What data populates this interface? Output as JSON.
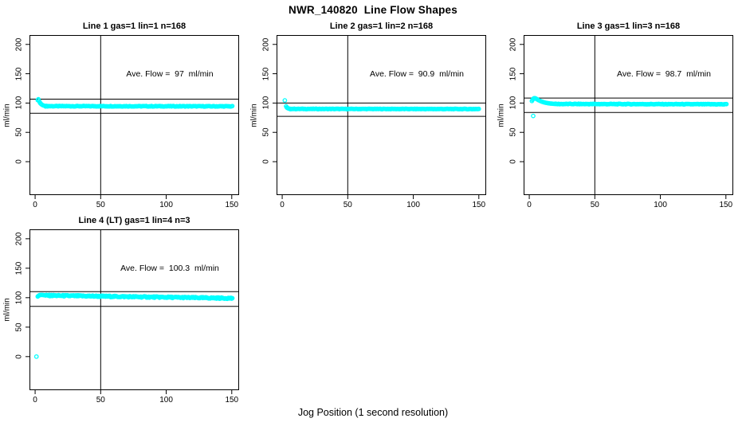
{
  "figure": {
    "title": "NWR_140820  Line Flow Shapes",
    "xlabel": "Jog Position (1 second resolution)",
    "background": "#FFFFFF",
    "point_color": "#00FFFF",
    "line_color": "#000000"
  },
  "axes": {
    "ylabel": "ml/min",
    "x_ticks": [
      0,
      50,
      100,
      150
    ],
    "y_ticks": [
      0,
      50,
      100,
      150,
      200
    ],
    "xlim": [
      -4.3,
      155.6
    ],
    "ylim": [
      -57,
      216
    ],
    "vline_x": 50
  },
  "chart_data": [
    {
      "type": "scatter",
      "title": "Line 1 gas=1 lin=1 n=168",
      "annotation": "Ave. Flow =  97  ml/min",
      "ave_flow_ml_min": 97,
      "n": 168,
      "ref_line_upper": 106.7,
      "ref_line_lower": 82.5,
      "points_outlier": [],
      "points_start": [
        [
          2,
          105
        ],
        [
          2.5,
          106.5
        ],
        [
          3,
          103.5
        ],
        [
          3.5,
          101.5
        ],
        [
          4,
          99.5
        ],
        [
          4.5,
          98.5
        ],
        [
          5,
          97.5
        ],
        [
          6,
          96.2
        ],
        [
          7,
          95.4
        ],
        [
          8,
          94.9
        ]
      ],
      "steady_band": {
        "x_start": 8,
        "x_end": 150.5,
        "step": 0.8,
        "y_start": 94.7,
        "y_end": 94.4,
        "noise": 0.5
      }
    },
    {
      "type": "scatter",
      "title": "Line 2 gas=1 lin=2 n=168",
      "annotation": "Ave. Flow =  90.9  ml/min",
      "ave_flow_ml_min": 90.9,
      "n": 168,
      "ref_line_upper": 100.0,
      "ref_line_lower": 77.3,
      "points_outlier": [],
      "points_start": [
        [
          2,
          104.5
        ],
        [
          3,
          94.5
        ],
        [
          3.5,
          92.5
        ],
        [
          4,
          91.5
        ],
        [
          4.5,
          91
        ],
        [
          5,
          90.6
        ],
        [
          6,
          90.2
        ]
      ],
      "steady_band": {
        "x_start": 6,
        "x_end": 150.5,
        "step": 0.8,
        "y_start": 90,
        "y_end": 89.8,
        "noise": 0.4
      }
    },
    {
      "type": "scatter",
      "title": "Line 3 gas=1 lin=3 n=168",
      "annotation": "Ave. Flow =  98.7  ml/min",
      "ave_flow_ml_min": 98.7,
      "n": 168,
      "ref_line_upper": 108.6,
      "ref_line_lower": 83.9,
      "points_outlier": [
        [
          3,
          78
        ]
      ],
      "points_start": [
        [
          2,
          103.5
        ],
        [
          2.5,
          105.5
        ],
        [
          3,
          107
        ],
        [
          3.5,
          108
        ],
        [
          4,
          108.3
        ],
        [
          4.5,
          108.2
        ],
        [
          5,
          107.7
        ],
        [
          5.5,
          107
        ],
        [
          6,
          106.3
        ],
        [
          7,
          105
        ],
        [
          8,
          103.9
        ],
        [
          9,
          102.9
        ],
        [
          10,
          102.1
        ],
        [
          11,
          101.4
        ],
        [
          12,
          100.8
        ],
        [
          13,
          100.3
        ],
        [
          14,
          99.9
        ],
        [
          15,
          99.5
        ],
        [
          16,
          99.2
        ],
        [
          17,
          99
        ],
        [
          18,
          98.8
        ],
        [
          19,
          98.6
        ],
        [
          20,
          98.5
        ]
      ],
      "steady_band": {
        "x_start": 20,
        "x_end": 150.5,
        "step": 0.8,
        "y_start": 98.4,
        "y_end": 97.9,
        "noise": 0.5
      }
    },
    {
      "type": "scatter",
      "title": "Line 4 (LT) gas=1 lin=4 n=3",
      "annotation": "Ave. Flow =  100.3  ml/min",
      "ave_flow_ml_min": 100.3,
      "n": 3,
      "ref_line_upper": 110.3,
      "ref_line_lower": 85.3,
      "points_outlier": [
        [
          1,
          0
        ]
      ],
      "points_start": [
        [
          2,
          102
        ],
        [
          2.5,
          103
        ],
        [
          3,
          103.8
        ],
        [
          3.5,
          104.3
        ],
        [
          4,
          104.6
        ],
        [
          5,
          104.7
        ],
        [
          6,
          104.5
        ],
        [
          7,
          104.2
        ],
        [
          8,
          104
        ]
      ],
      "steady_band": {
        "x_start": 8,
        "x_end": 150.5,
        "step": 0.55,
        "y_start": 103.8,
        "y_end": 99,
        "noise": 1.1
      }
    }
  ]
}
